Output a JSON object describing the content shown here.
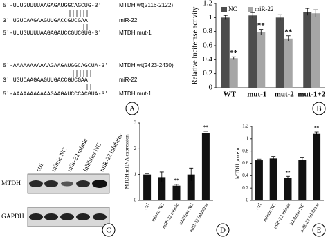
{
  "sequences": [
    {
      "seq": "5'-UUUGUUUUAAGAGAUGGCAGCUG-3'",
      "name": "MTDH wt(2116-2122)"
    },
    {
      "seq": "3'   UGUCAAGAAGUUGACCGUCGAA",
      "name": "miR-22"
    },
    {
      "seq": "5'-UUUGUUUUAAGAGAUCCGUCGUG-3'",
      "name": "MTDH mut-1"
    },
    {
      "seq": "5'-AAAAAAAAAAAGAAGAUGGCAGCUA-3'",
      "name": "MTDH wt(2423-2430)"
    },
    {
      "seq": "3'   UGUCAAGAAGUUGACCGUCGAA",
      "name": "miR-22"
    },
    {
      "seq": "5'-AAAAAAAAAAAGAAGAUCCCACGUA-3'",
      "name": "MTDH mut-1"
    }
  ],
  "blot": {
    "lanes": [
      "ctrl",
      "mimic NC",
      "miR-22 mimic",
      "inhibitor NC",
      "miR-22 inhibitor"
    ],
    "rows": [
      "MTDH",
      "GAPDH"
    ]
  },
  "panel_labels": [
    "A",
    "B",
    "C",
    "D",
    "E"
  ],
  "chart_data": [
    {
      "type": "bar",
      "y_label": "Relative luciferase activity",
      "categories": [
        "WT",
        "mut-1",
        "mut-2",
        "mut-1+2"
      ],
      "series": [
        {
          "name": "NC",
          "color": "#4d4d4d",
          "values": [
            1.0,
            1.03,
            1.0,
            1.08
          ],
          "errors": [
            0.03,
            0.04,
            0.04,
            0.05
          ],
          "significance": [
            null,
            null,
            null,
            null
          ]
        },
        {
          "name": "miR-22",
          "color": "#a6a6a6",
          "values": [
            0.42,
            0.79,
            0.7,
            1.06
          ],
          "errors": [
            0.02,
            0.04,
            0.04,
            0.05
          ],
          "significance": [
            "**",
            "**",
            "**",
            null
          ]
        }
      ],
      "ylim": [
        0,
        1.2
      ],
      "yticks": [
        0,
        0.2,
        0.4,
        0.6,
        0.8,
        1,
        1.2
      ],
      "legend": "top-left"
    },
    {
      "type": "bar",
      "y_label": "MTDH mRNA expression",
      "categories": [
        "ctrl",
        "mimic NC",
        "miR-22 mimic",
        "inhibitor NC",
        "miR-22 inhibitor"
      ],
      "series": [
        {
          "name": null,
          "color": "#111111",
          "values": [
            1.0,
            0.9,
            0.57,
            1.0,
            2.6
          ],
          "errors": [
            0.04,
            0.2,
            0.05,
            0.25,
            0.08
          ],
          "significance": [
            null,
            null,
            "**",
            null,
            "**"
          ]
        }
      ],
      "ylim": [
        0,
        3
      ],
      "yticks": [
        0,
        1,
        2,
        3
      ]
    },
    {
      "type": "bar",
      "y_label": "MTDH protein",
      "categories": [
        "ctrl",
        "mimic NC",
        "miR-22 mimic",
        "inhibitor NC",
        "miR-22 inhibitor"
      ],
      "series": [
        {
          "name": null,
          "color": "#111111",
          "values": [
            0.65,
            0.68,
            0.37,
            0.66,
            1.08
          ],
          "errors": [
            0.02,
            0.03,
            0.02,
            0.03,
            0.03
          ],
          "significance": [
            null,
            null,
            "**",
            null,
            "**"
          ]
        }
      ],
      "ylim": [
        0,
        1.2
      ],
      "yticks": [
        0,
        0.2,
        0.4,
        0.6,
        0.8,
        1,
        1.2
      ]
    }
  ]
}
